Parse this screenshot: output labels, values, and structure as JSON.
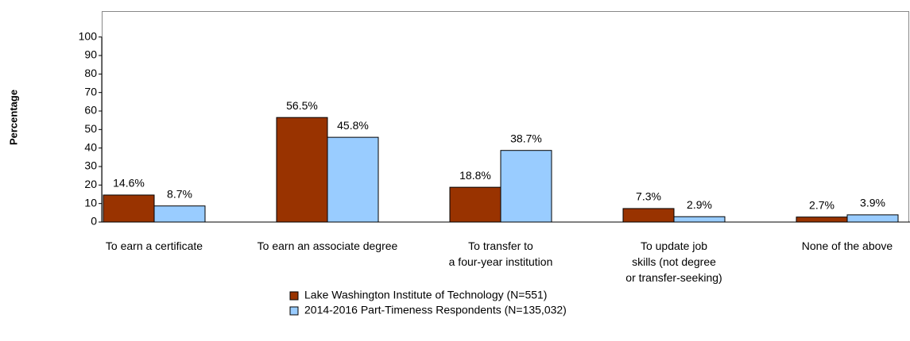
{
  "chart_data": {
    "type": "bar",
    "y_label": "Percentage",
    "categories": [
      "To earn a certificate",
      "To earn an associate degree",
      "To transfer to\na four-year institution",
      "To update job\nskills (not degree\nor transfer-seeking)",
      "None of the above"
    ],
    "series": [
      {
        "name": "Lake Washington Institute of Technology (N=551)",
        "color": "#993300",
        "values": [
          14.6,
          56.5,
          18.8,
          7.3,
          2.7
        ],
        "value_labels": [
          "14.6%",
          "56.5%",
          "18.8%",
          "7.3%",
          "2.7%"
        ]
      },
      {
        "name": "2014-2016 Part-Timeness Respondents (N=135,032)",
        "color": "#99ccff",
        "values": [
          8.7,
          45.8,
          38.7,
          2.9,
          3.9
        ],
        "value_labels": [
          "8.7%",
          "45.8%",
          "38.7%",
          "2.9%",
          "3.9%"
        ]
      }
    ],
    "ylim": [
      0,
      114
    ],
    "yticks": [
      0,
      10,
      20,
      30,
      40,
      50,
      60,
      70,
      80,
      90,
      100
    ]
  }
}
